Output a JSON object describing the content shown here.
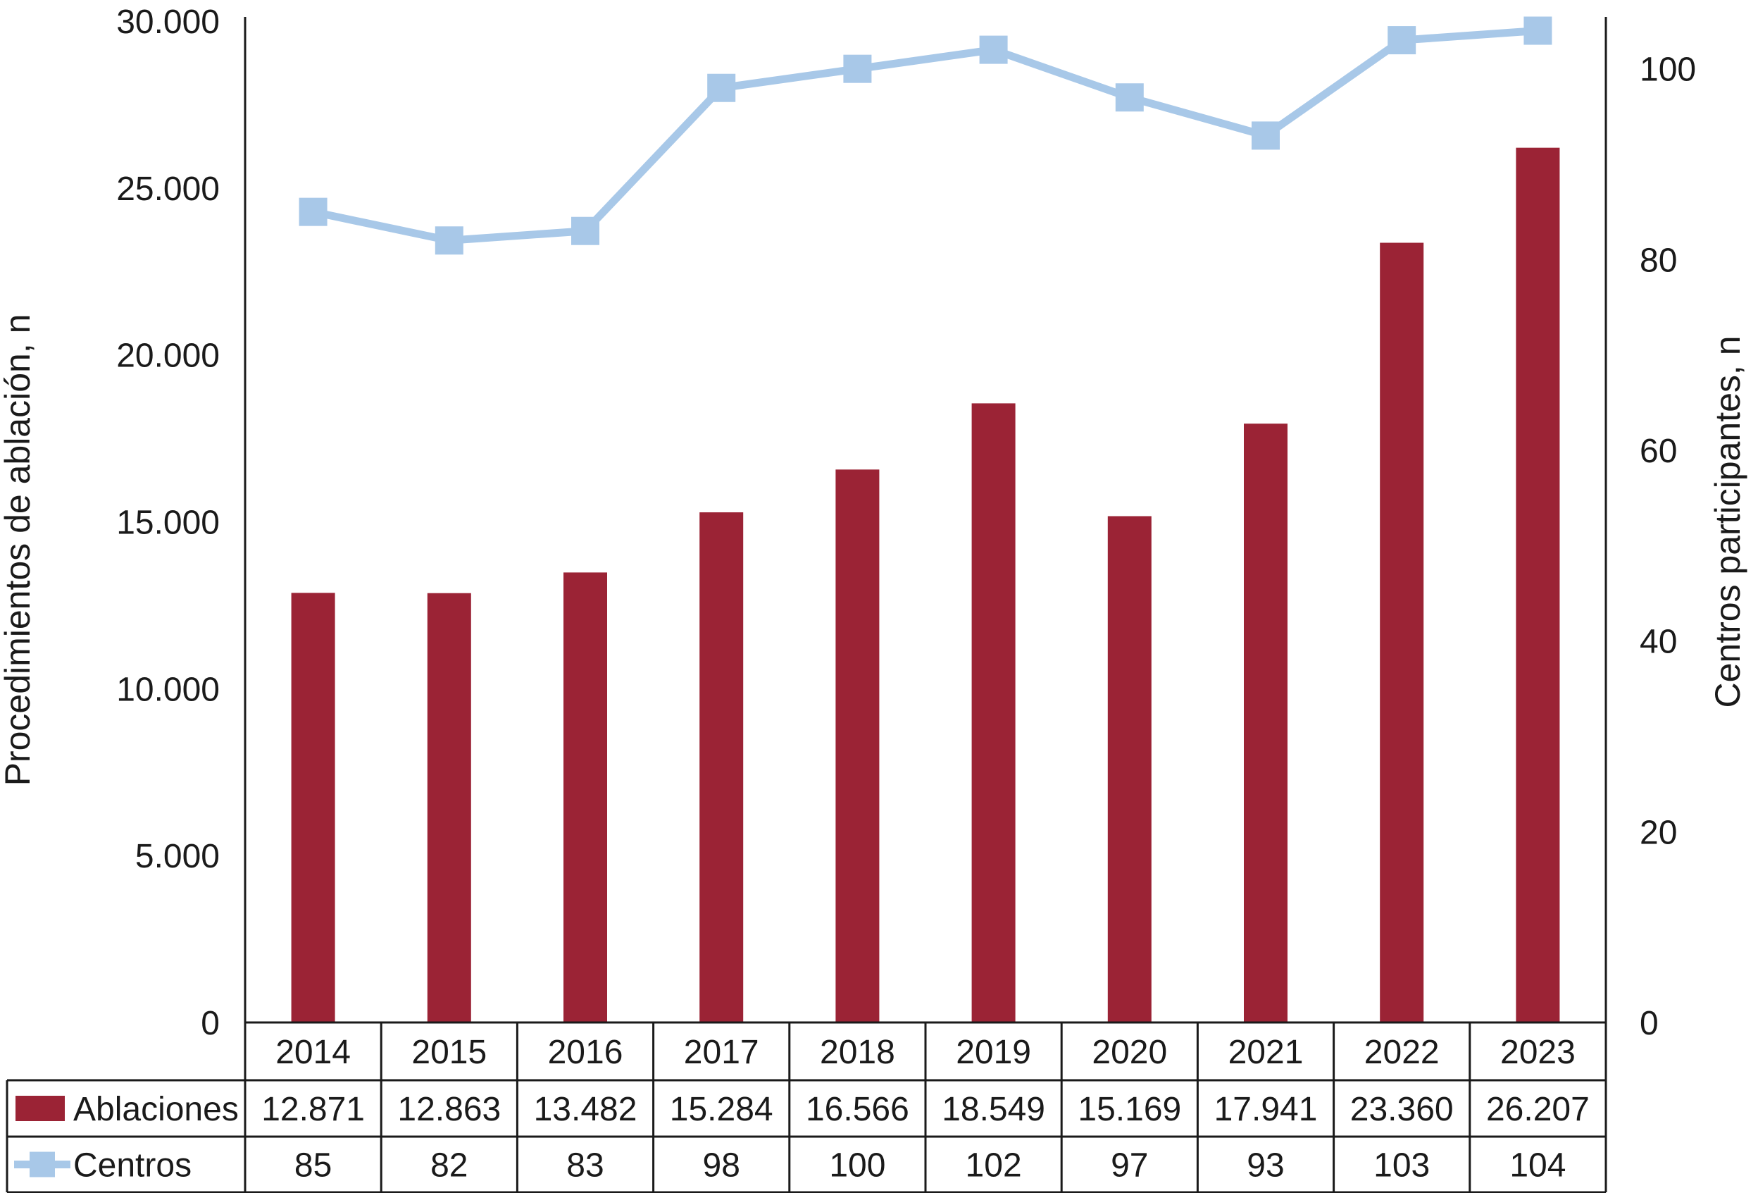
{
  "chart_data": {
    "type": "bar",
    "categories": [
      "2014",
      "2015",
      "2016",
      "2017",
      "2018",
      "2019",
      "2020",
      "2021",
      "2022",
      "2023"
    ],
    "series": [
      {
        "name": "Ablaciones",
        "type": "bar",
        "axis": "left",
        "color": "#9b2335",
        "values": [
          12871,
          12863,
          13482,
          15284,
          16566,
          18549,
          15169,
          17941,
          23360,
          26207
        ],
        "labels": [
          "12.871",
          "12.863",
          "13.482",
          "15.284",
          "16.566",
          "18.549",
          "15.169",
          "17.941",
          "23.360",
          "26.207"
        ]
      },
      {
        "name": "Centros",
        "type": "line",
        "axis": "right",
        "color": "#a8c8e8",
        "values": [
          85,
          82,
          83,
          98,
          100,
          102,
          97,
          93,
          103,
          104
        ],
        "labels": [
          "85",
          "82",
          "83",
          "98",
          "100",
          "102",
          "97",
          "93",
          "103",
          "104"
        ]
      }
    ],
    "ylabel": "Procedimientos de ablación, n",
    "y2label": "Centros participantes, n",
    "ylim": [
      0,
      30000
    ],
    "y2lim": [
      0,
      105
    ],
    "yticks": [
      "0",
      "5.000",
      "10.000",
      "15.000",
      "20.000",
      "25.000",
      "30.000"
    ],
    "y2ticks": [
      "0",
      "20",
      "40",
      "60",
      "80",
      "100"
    ],
    "grid": false,
    "legend": "data-table-below"
  }
}
